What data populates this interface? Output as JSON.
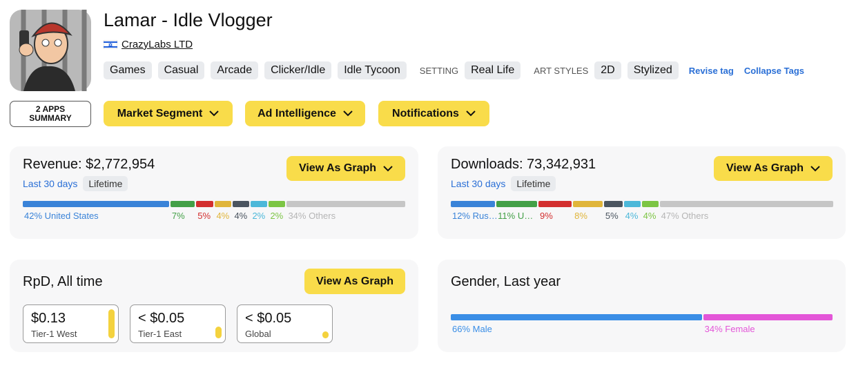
{
  "app": {
    "title": "Lamar - Idle Vlogger",
    "developer": "CrazyLabs LTD",
    "tags": [
      "Games",
      "Casual",
      "Arcade",
      "Clicker/Idle",
      "Idle Tycoon"
    ],
    "setting_label": "SETTING",
    "setting_tags": [
      "Real Life"
    ],
    "art_label": "ART STYLES",
    "art_tags": [
      "2D",
      "Stylized"
    ],
    "revise": "Revise tag",
    "collapse": "Collapse Tags"
  },
  "toolbar": {
    "summary": [
      "2 APPS",
      "SUMMARY"
    ],
    "menus": [
      "Market Segment",
      "Ad Intelligence",
      "Notifications"
    ]
  },
  "revenue": {
    "title": "Revenue: $2,772,954",
    "button": "View As Graph",
    "tabs": [
      "Last 30 days",
      "Lifetime"
    ],
    "segments": [
      {
        "value": 42,
        "label": "42% United States",
        "color": "#3a83d8"
      },
      {
        "value": 7,
        "label": "7%",
        "color": "#43a047"
      },
      {
        "value": 5,
        "label": "5%",
        "color": "#d32f2f"
      },
      {
        "value": 4,
        "label": "4%",
        "color": "#e0b53a"
      },
      {
        "value": 4,
        "label": "4%",
        "color": "#4b5560"
      },
      {
        "value": 2,
        "label": "2%",
        "color": "#4cb8d9"
      },
      {
        "value": 2,
        "label": "2%",
        "color": "#7cc544"
      },
      {
        "value": 34,
        "label": "34% Others",
        "color": "#c6c6c6"
      }
    ]
  },
  "downloads": {
    "title": "Downloads: 73,342,931",
    "button": "View As Graph",
    "tabs": [
      "Last 30 days",
      "Lifetime"
    ],
    "segments": [
      {
        "value": 12,
        "label": "12% Rus…",
        "color": "#3a83d8"
      },
      {
        "value": 11,
        "label": "11% U…",
        "color": "#43a047"
      },
      {
        "value": 9,
        "label": "9%",
        "color": "#d32f2f"
      },
      {
        "value": 8,
        "label": "8%",
        "color": "#e0b53a"
      },
      {
        "value": 5,
        "label": "5%",
        "color": "#4b5560"
      },
      {
        "value": 4,
        "label": "4%",
        "color": "#4cb8d9"
      },
      {
        "value": 4,
        "label": "4%",
        "color": "#7cc544"
      },
      {
        "value": 47,
        "label": "47% Others",
        "color": "#c6c6c6"
      }
    ]
  },
  "rpd": {
    "title": "RpD, All time",
    "button": "View As Graph",
    "boxes": [
      {
        "value": "$0.13",
        "label": "Tier-1 West",
        "level": 100
      },
      {
        "value": "< $0.05",
        "label": "Tier-1 East",
        "level": 40
      },
      {
        "value": "< $0.05",
        "label": "Global",
        "level": 25
      }
    ]
  },
  "gender": {
    "title": "Gender, Last year",
    "segments": [
      {
        "value": 66,
        "label": "66% Male",
        "color": "#3a8ee6"
      },
      {
        "value": 34,
        "label": "34% Female",
        "color": "#e356d8"
      }
    ]
  }
}
